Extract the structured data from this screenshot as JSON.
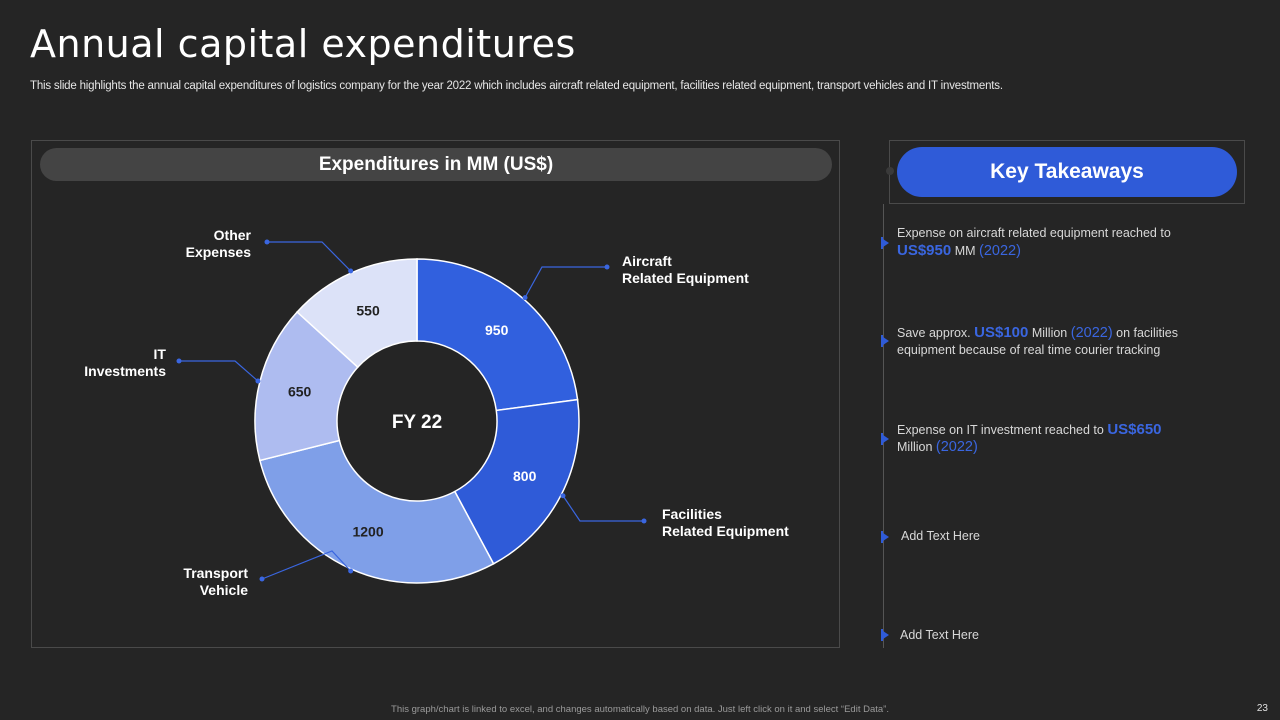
{
  "slide": {
    "title": "Annual capital expenditures",
    "subtitle": "This slide highlights the annual capital expenditures of logistics company for the year 2022 which includes aircraft related equipment, facilities related equipment, transport vehicles and IT investments.",
    "footer_note": "This graph/chart is linked to excel, and changes automatically based on data. Just left click on it and select “Edit Data”.",
    "page_number": "23"
  },
  "colors": {
    "background": "#252525",
    "accent": "#2f5bd8"
  },
  "chart_data": {
    "type": "pie",
    "donut": true,
    "title": "Expenditures in MM (US$)",
    "center_label": "FY 22",
    "categories": [
      "Aircraft Related Equipment",
      "Facilities Related Equipment",
      "Transport Vehicle",
      "IT Investments",
      "Other Expenses"
    ],
    "values": [
      950,
      800,
      1200,
      650,
      550
    ],
    "legend_labels": [
      [
        "Aircraft",
        "Related Equipment"
      ],
      [
        "Facilities",
        "Related Equipment"
      ],
      [
        "Transport",
        "Vehicle"
      ],
      [
        "IT",
        "Investments"
      ],
      [
        "Other",
        "Expenses"
      ]
    ],
    "slice_colors": [
      "#3160de",
      "#2f5bd8",
      "#7f9fe8",
      "#aebcf0",
      "#dce2f8"
    ],
    "label_colors": [
      "#ffffff",
      "#ffffff",
      "#222222",
      "#222222",
      "#222222"
    ]
  },
  "takeaways": {
    "heading": "Key Takeaways",
    "items": [
      {
        "pre": "Expense on aircraft related equipment reached to",
        "hl1": "US$950",
        "mid": " MM ",
        "hl2": "(2022)"
      },
      {
        "pre": "Save approx. ",
        "hl1": "US$100",
        "mid": " Million ",
        "hl2": "(2022)",
        "post": " on facilities equipment because of real time courier tracking"
      },
      {
        "pre": "Expense on IT investment reached to ",
        "hl1": "US$650",
        "mid": " Million ",
        "hl2": "(2022)"
      },
      {
        "text": "Add Text Here"
      },
      {
        "text": "Add Text Here"
      }
    ]
  }
}
